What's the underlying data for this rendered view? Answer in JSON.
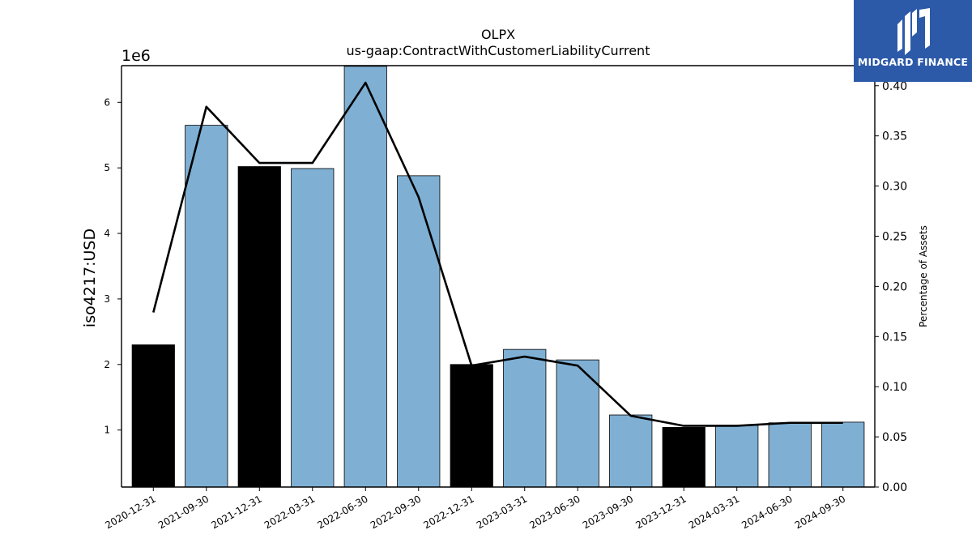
{
  "chart_data": {
    "type": "bar",
    "title": "OLPX",
    "subtitle": "us-gaap:ContractWithCustomerLiabilityCurrent",
    "ylabel": "iso4217:USD",
    "y2label": "Percentage of Assets",
    "y_offset_label": "1e6",
    "categories": [
      "2020-12-31",
      "2021-09-30",
      "2021-12-31",
      "2022-03-31",
      "2022-06-30",
      "2022-09-30",
      "2022-12-31",
      "2023-03-31",
      "2023-06-30",
      "2023-09-30",
      "2023-12-31",
      "2024-03-31",
      "2024-06-30",
      "2024-09-30"
    ],
    "values": [
      2300000,
      5650000,
      5020000,
      4990000,
      6550000,
      4880000,
      2000000,
      2230000,
      2070000,
      1230000,
      1040000,
      1070000,
      1110000,
      1120000
    ],
    "bar_colors": [
      "#000000",
      "#7fb0d4",
      "#000000",
      "#7fb0d4",
      "#7fb0d4",
      "#7fb0d4",
      "#000000",
      "#7fb0d4",
      "#7fb0d4",
      "#7fb0d4",
      "#000000",
      "#7fb0d4",
      "#7fb0d4",
      "#7fb0d4"
    ],
    "pct_of_assets": [
      0.174,
      0.379,
      0.323,
      0.323,
      0.403,
      0.289,
      0.121,
      0.13,
      0.121,
      0.071,
      0.061,
      0.061,
      0.064,
      0.064
    ],
    "ylim": [
      130000,
      6560000
    ],
    "y2lim": [
      0.0,
      0.42
    ],
    "yticks": [
      1,
      2,
      3,
      4,
      5,
      6
    ],
    "y2ticks": [
      "0.00",
      "0.05",
      "0.10",
      "0.15",
      "0.20",
      "0.25",
      "0.30",
      "0.35",
      "0.40"
    ],
    "line_color": "#000000",
    "grid": false
  },
  "logo": {
    "text": "MIDGARD FINANCE",
    "color": "#2c5aa9"
  }
}
